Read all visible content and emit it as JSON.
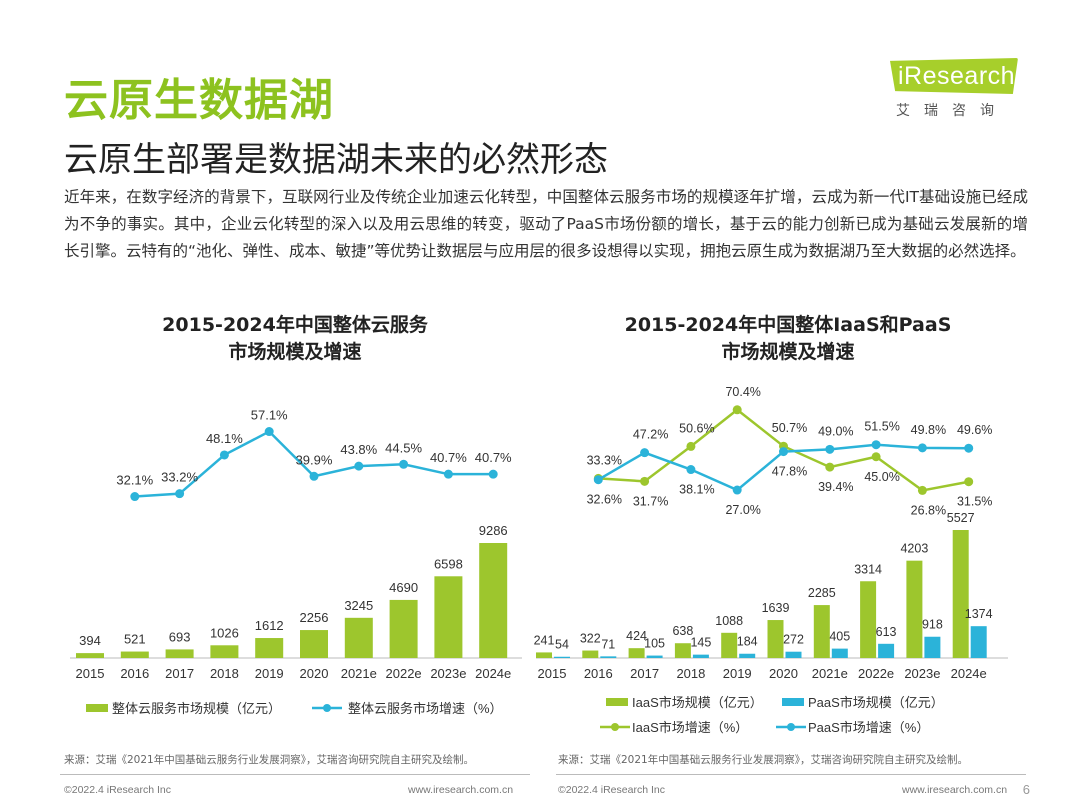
{
  "header": {
    "title": "云原生数据湖",
    "subtitle": "云原生部署是数据湖未来的必然形态",
    "logo_text": "iResearch",
    "logo_cn": "艾瑞咨询",
    "intro": "近年来，在数字经济的背景下，互联网行业及传统企业加速云化转型，中国整体云服务市场的规模逐年扩增，云成为新一代IT基础设施已经成为不争的事实。其中，企业云化转型的深入以及用云思维的转变，驱动了PaaS市场份额的增长，基于云的能力创新已成为基础云发展新的增长引擎。云特有的“池化、弹性、成本、敏捷”等优势让数据层与应用层的很多设想得以实现，拥抱云原生成为数据湖乃至大数据的必然选择。"
  },
  "colors": {
    "bar_green": "#9dc62d",
    "line_blue": "#2bb3d9",
    "title_green": "#8dc21f"
  },
  "chart_data": [
    {
      "type": "bar+line",
      "title": "2015-2024年中国整体云服务\n市场规模及增速",
      "categories": [
        "2015",
        "2016",
        "2017",
        "2018",
        "2019",
        "2020",
        "2021e",
        "2022e",
        "2023e",
        "2024e"
      ],
      "series": [
        {
          "name": "整体云服务市场规模（亿元）",
          "kind": "bar",
          "axis": "left",
          "values": [
            394,
            521,
            693,
            1026,
            1612,
            2256,
            3245,
            4690,
            6598,
            9286
          ]
        },
        {
          "name": "整体云服务市场增速（%）",
          "kind": "line",
          "axis": "right",
          "values": [
            null,
            32.1,
            33.2,
            48.1,
            57.1,
            39.9,
            43.8,
            44.5,
            40.7,
            40.7
          ],
          "labels": [
            "",
            "32.1%",
            "33.2%",
            "48.1%",
            "57.1%",
            "39.9%",
            "43.8%",
            "44.5%",
            "40.7%",
            "40.7%"
          ]
        }
      ],
      "legend": "bottom",
      "source": "来源：艾瑞《2021年中国基础云服务行业发展洞察》，艾瑞咨询研究院自主研究及绘制。"
    },
    {
      "type": "bar+line",
      "title": "2015-2024年中国整体IaaS和PaaS\n市场规模及增速",
      "categories": [
        "2015",
        "2016",
        "2017",
        "2018",
        "2019",
        "2020",
        "2021e",
        "2022e",
        "2023e",
        "2024e"
      ],
      "series": [
        {
          "name": "IaaS市场规模（亿元）",
          "kind": "bar",
          "axis": "left",
          "values": [
            241,
            322,
            424,
            638,
            1088,
            1639,
            2285,
            3314,
            4203,
            5527
          ]
        },
        {
          "name": "PaaS市场规模（亿元）",
          "kind": "bar",
          "axis": "left",
          "values": [
            54,
            71,
            105,
            145,
            184,
            272,
            405,
            613,
            918,
            1374
          ]
        },
        {
          "name": "IaaS市场增速（%）",
          "kind": "line",
          "axis": "right",
          "values": [
            null,
            33.3,
            31.7,
            50.6,
            70.4,
            50.7,
            39.4,
            45.0,
            26.8,
            31.5
          ],
          "labels": [
            "",
            "33.3%",
            "31.7%",
            "50.6%",
            "70.4%",
            "50.7%",
            "39.4%",
            "45.0%",
            "26.8%",
            "31.5%"
          ]
        },
        {
          "name": "PaaS市场增速（%）",
          "kind": "line",
          "axis": "right",
          "values": [
            null,
            32.6,
            47.2,
            38.1,
            27.0,
            47.8,
            49.0,
            51.5,
            49.8,
            49.6
          ],
          "labels": [
            "",
            "32.6%",
            "47.2%",
            "38.1%",
            "27.0%",
            "47.8%",
            "49.0%",
            "51.5%",
            "49.8%",
            "49.6%"
          ]
        }
      ],
      "legend": "bottom",
      "source": "来源：艾瑞《2021年中国基础云服务行业发展洞察》，艾瑞咨询研究院自主研究及绘制。"
    }
  ],
  "footer": {
    "left_copyright": "©2022.4 iResearch Inc",
    "left_url": "www.iresearch.com.cn",
    "right_copyright": "©2022.4 iResearch Inc",
    "right_url": "www.iresearch.com.cn",
    "page_number": "6"
  }
}
